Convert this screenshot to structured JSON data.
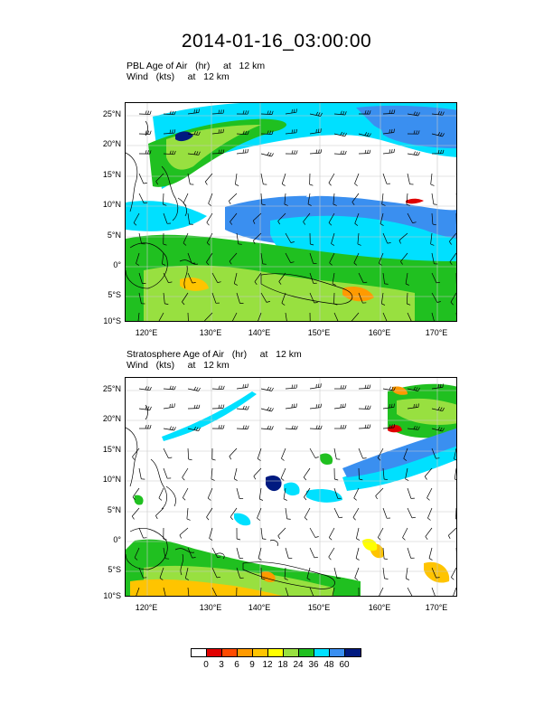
{
  "page": {
    "title": "2014-01-16_03:00:00"
  },
  "panels": [
    {
      "subtitle_line1": "PBL Age of Air   (hr)     at   12 km",
      "subtitle_line2": "Wind   (kts)     at   12 km",
      "lat_labels": [
        "25°N",
        "20°N",
        "15°N",
        "10°N",
        "5°N",
        "0°",
        "5°S",
        "10°S"
      ],
      "lon_labels": [
        "120°E",
        "130°E",
        "140°E",
        "150°E",
        "160°E",
        "170°E"
      ]
    },
    {
      "subtitle_line1": "Stratosphere Age of Air   (hr)     at   12 km",
      "subtitle_line2": "Wind   (kts)     at   12 km",
      "lat_labels": [
        "25°N",
        "20°N",
        "15°N",
        "10°N",
        "5°N",
        "0°",
        "5°S",
        "10°S"
      ],
      "lon_labels": [
        "120°E",
        "130°E",
        "140°E",
        "150°E",
        "160°E",
        "170°E"
      ]
    }
  ],
  "colorbar": {
    "labels": [
      "0",
      "3",
      "6",
      "9",
      "12",
      "18",
      "24",
      "36",
      "48",
      "60"
    ],
    "colors": [
      "#ffffff",
      "#e00000",
      "#ff4a00",
      "#ff9a00",
      "#ffc400",
      "#ffff00",
      "#98e040",
      "#20c020",
      "#00e0ff",
      "#3a8ff0",
      "#001a80"
    ]
  },
  "colors": {
    "ocean": "#ffffff",
    "grid": "#c8c8c8",
    "coast": "#000000"
  }
}
